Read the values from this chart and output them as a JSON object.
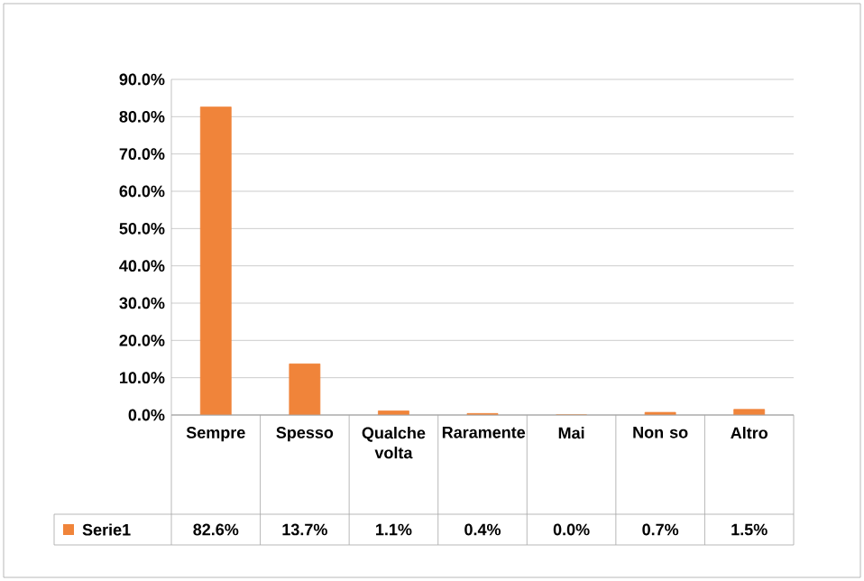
{
  "chart_data": {
    "type": "bar",
    "categories": [
      "Sempre",
      "Spesso",
      "Qualche volta",
      "Raramente",
      "Mai",
      "Non so",
      "Altro"
    ],
    "series": [
      {
        "name": "Serie1",
        "color": "#f0843a",
        "values": [
          82.6,
          13.7,
          1.1,
          0.4,
          0.0,
          0.7,
          1.5
        ],
        "value_labels": [
          "82.6%",
          "13.7%",
          "1.1%",
          "0.4%",
          "0.0%",
          "0.7%",
          "1.5%"
        ]
      }
    ],
    "ylim": [
      0,
      90
    ],
    "yticks": [
      {
        "value": 0,
        "label": "0.0%"
      },
      {
        "value": 10,
        "label": "10.0%"
      },
      {
        "value": 20,
        "label": "20.0%"
      },
      {
        "value": 30,
        "label": "30.0%"
      },
      {
        "value": 40,
        "label": "40.0%"
      },
      {
        "value": 50,
        "label": "50.0%"
      },
      {
        "value": 60,
        "label": "60.0%"
      },
      {
        "value": 70,
        "label": "70.0%"
      },
      {
        "value": 80,
        "label": "80.0%"
      },
      {
        "value": 90,
        "label": "90.0%"
      }
    ],
    "grid": "y",
    "legend": "bottom"
  }
}
